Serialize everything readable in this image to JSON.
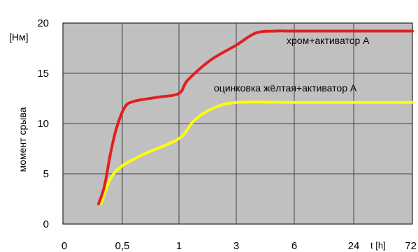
{
  "chart_data": {
    "type": "line",
    "title": "",
    "xlabel": "t [h]",
    "ylabel": "момент срыва",
    "yunit": "[Нм]",
    "ylim": [
      0,
      20
    ],
    "yticks": [
      "0",
      "5",
      "10",
      "15",
      "20"
    ],
    "x_categories": [
      "0",
      "0,5",
      "1",
      "3",
      "6",
      "24",
      "72"
    ],
    "grid": true,
    "colors": {
      "plot_bg": "#c0c0c0",
      "grid": "#404040",
      "series_red": "#e02020",
      "series_yellow": "#ffff00"
    },
    "series": [
      {
        "name": "хром+активатор А",
        "color": "#e02020",
        "points": [
          {
            "x": 0.3,
            "y": 2.0
          },
          {
            "x": 0.35,
            "y": 3.8
          },
          {
            "x": 0.4,
            "y": 7.0
          },
          {
            "x": 0.45,
            "y": 9.5
          },
          {
            "x": 0.52,
            "y": 11.6
          },
          {
            "x": 0.6,
            "y": 12.2
          },
          {
            "x": 0.8,
            "y": 12.6
          },
          {
            "x": 1.0,
            "y": 13.0
          },
          {
            "x": 1.3,
            "y": 14.3
          },
          {
            "x": 2.1,
            "y": 16.3
          },
          {
            "x": 3.0,
            "y": 17.8
          },
          {
            "x": 4.0,
            "y": 19.0
          },
          {
            "x": 5.0,
            "y": 19.2
          },
          {
            "x": 6.0,
            "y": 19.2
          },
          {
            "x": 24.0,
            "y": 19.2
          },
          {
            "x": 72.0,
            "y": 19.2
          }
        ]
      },
      {
        "name": "оцинковка жёлтая+активатор А",
        "color": "#ffff00",
        "points": [
          {
            "x": 0.32,
            "y": 2.0
          },
          {
            "x": 0.4,
            "y": 4.5
          },
          {
            "x": 0.5,
            "y": 5.8
          },
          {
            "x": 0.7,
            "y": 7.0
          },
          {
            "x": 1.0,
            "y": 8.5
          },
          {
            "x": 1.5,
            "y": 10.2
          },
          {
            "x": 2.1,
            "y": 11.4
          },
          {
            "x": 3.0,
            "y": 12.1
          },
          {
            "x": 6.0,
            "y": 12.1
          },
          {
            "x": 24.0,
            "y": 12.1
          },
          {
            "x": 72.0,
            "y": 12.1
          }
        ]
      }
    ]
  }
}
